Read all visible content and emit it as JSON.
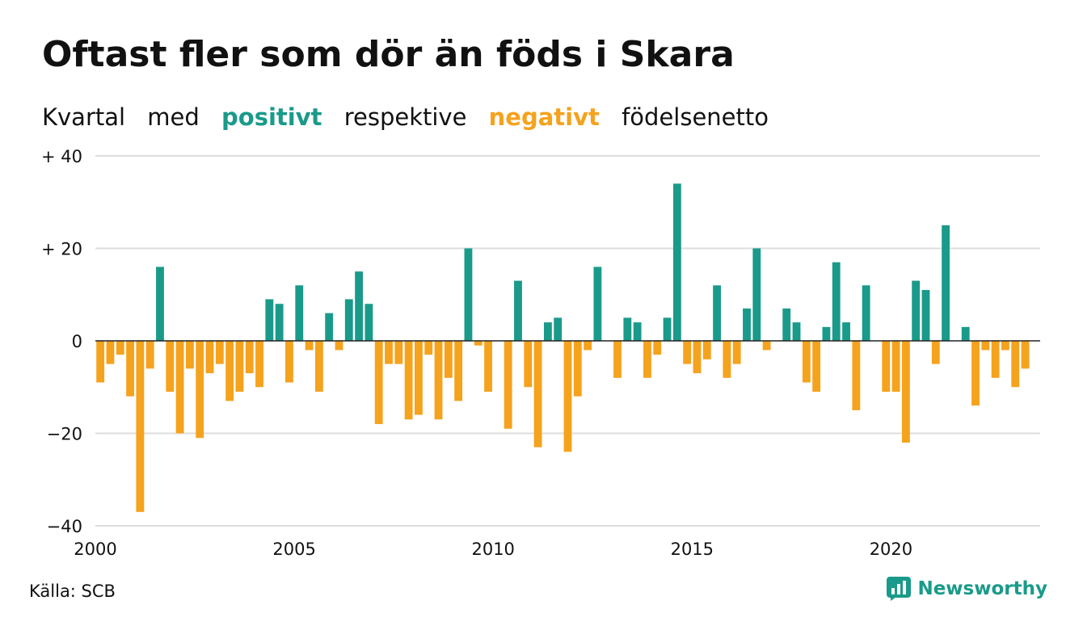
{
  "title": "Oftast fler som dör än föds i Skara",
  "subtitle": {
    "part1": "Kvartal",
    "part2": "med",
    "positive": "positivt",
    "part3": "respektive",
    "negative": "negativt",
    "part4": "födelsenetto"
  },
  "source": "Källa: SCB",
  "brand": {
    "name": "Newsworthy",
    "icon": "newsworthy-logo-icon"
  },
  "colors": {
    "positive": "#1a9a8a",
    "negative": "#f5a21d",
    "grid": "#dddddd",
    "zero_line": "#222222",
    "text": "#111111",
    "brand": "#1a9a8a"
  },
  "chart_data": {
    "type": "bar",
    "x_axis": {
      "type": "time",
      "start": 2000,
      "end": 2023.75,
      "tick_labels": [
        "2000",
        "2005",
        "2010",
        "2015",
        "2020"
      ]
    },
    "y_axis": {
      "min": -40,
      "max": 40,
      "tick_labels": [
        "+ 40",
        "+ 20",
        "0",
        "−20",
        "−40"
      ],
      "tick_values": [
        40,
        20,
        0,
        -20,
        -40
      ]
    },
    "grid": true,
    "series": [
      {
        "periods": [
          "2000Q1",
          "2000Q2",
          "2000Q3",
          "2000Q4",
          "2001Q1",
          "2001Q2",
          "2001Q3",
          "2001Q4",
          "2002Q1",
          "2002Q2",
          "2002Q3",
          "2002Q4",
          "2003Q1",
          "2003Q2",
          "2003Q3",
          "2003Q4",
          "2004Q1",
          "2004Q2",
          "2004Q3",
          "2004Q4",
          "2005Q1",
          "2005Q2",
          "2005Q3",
          "2005Q4",
          "2006Q1",
          "2006Q2",
          "2006Q3",
          "2006Q4",
          "2007Q1",
          "2007Q2",
          "2007Q3",
          "2007Q4",
          "2008Q1",
          "2008Q2",
          "2008Q3",
          "2008Q4",
          "2009Q1",
          "2009Q2",
          "2009Q3",
          "2009Q4",
          "2010Q1",
          "2010Q2",
          "2010Q3",
          "2010Q4",
          "2011Q1",
          "2011Q2",
          "2011Q3",
          "2011Q4",
          "2012Q1",
          "2012Q2",
          "2012Q3",
          "2012Q4",
          "2013Q1",
          "2013Q2",
          "2013Q3",
          "2013Q4",
          "2014Q1",
          "2014Q2",
          "2014Q3",
          "2014Q4",
          "2015Q1",
          "2015Q2",
          "2015Q3",
          "2015Q4",
          "2016Q1",
          "2016Q2",
          "2016Q3",
          "2016Q4",
          "2017Q1",
          "2017Q2",
          "2017Q3",
          "2017Q4",
          "2018Q1",
          "2018Q2",
          "2018Q3",
          "2018Q4",
          "2019Q1",
          "2019Q2",
          "2019Q3",
          "2019Q4",
          "2020Q1",
          "2020Q2",
          "2020Q3",
          "2020Q4",
          "2021Q1",
          "2021Q2",
          "2021Q3",
          "2021Q4",
          "2022Q1",
          "2022Q2",
          "2022Q3",
          "2022Q4",
          "2023Q1",
          "2023Q2",
          "2023Q3",
          "2023Q4"
        ],
        "values": [
          -9,
          -5,
          -3,
          -12,
          -37,
          -6,
          16,
          -11,
          -20,
          -6,
          -21,
          -7,
          -5,
          -13,
          -11,
          -7,
          -10,
          9,
          8,
          -9,
          12,
          -2,
          -11,
          6,
          -2,
          9,
          15,
          8,
          -18,
          -5,
          -5,
          -17,
          -16,
          -3,
          -17,
          -8,
          -13,
          20,
          -1,
          -11,
          0,
          -19,
          13,
          -10,
          -23,
          4,
          5,
          -24,
          -12,
          -2,
          16,
          0,
          -8,
          5,
          4,
          -8,
          -3,
          5,
          34,
          -5,
          -7,
          -4,
          12,
          -8,
          -5,
          7,
          20,
          -2,
          0,
          7,
          4,
          -9,
          -11,
          3,
          17,
          4,
          -15,
          12,
          0,
          -11,
          -11,
          -22,
          13,
          11,
          -5,
          25,
          0,
          3,
          -14,
          -2,
          -8,
          -2,
          -10,
          -6,
          0,
          0
        ]
      }
    ]
  }
}
